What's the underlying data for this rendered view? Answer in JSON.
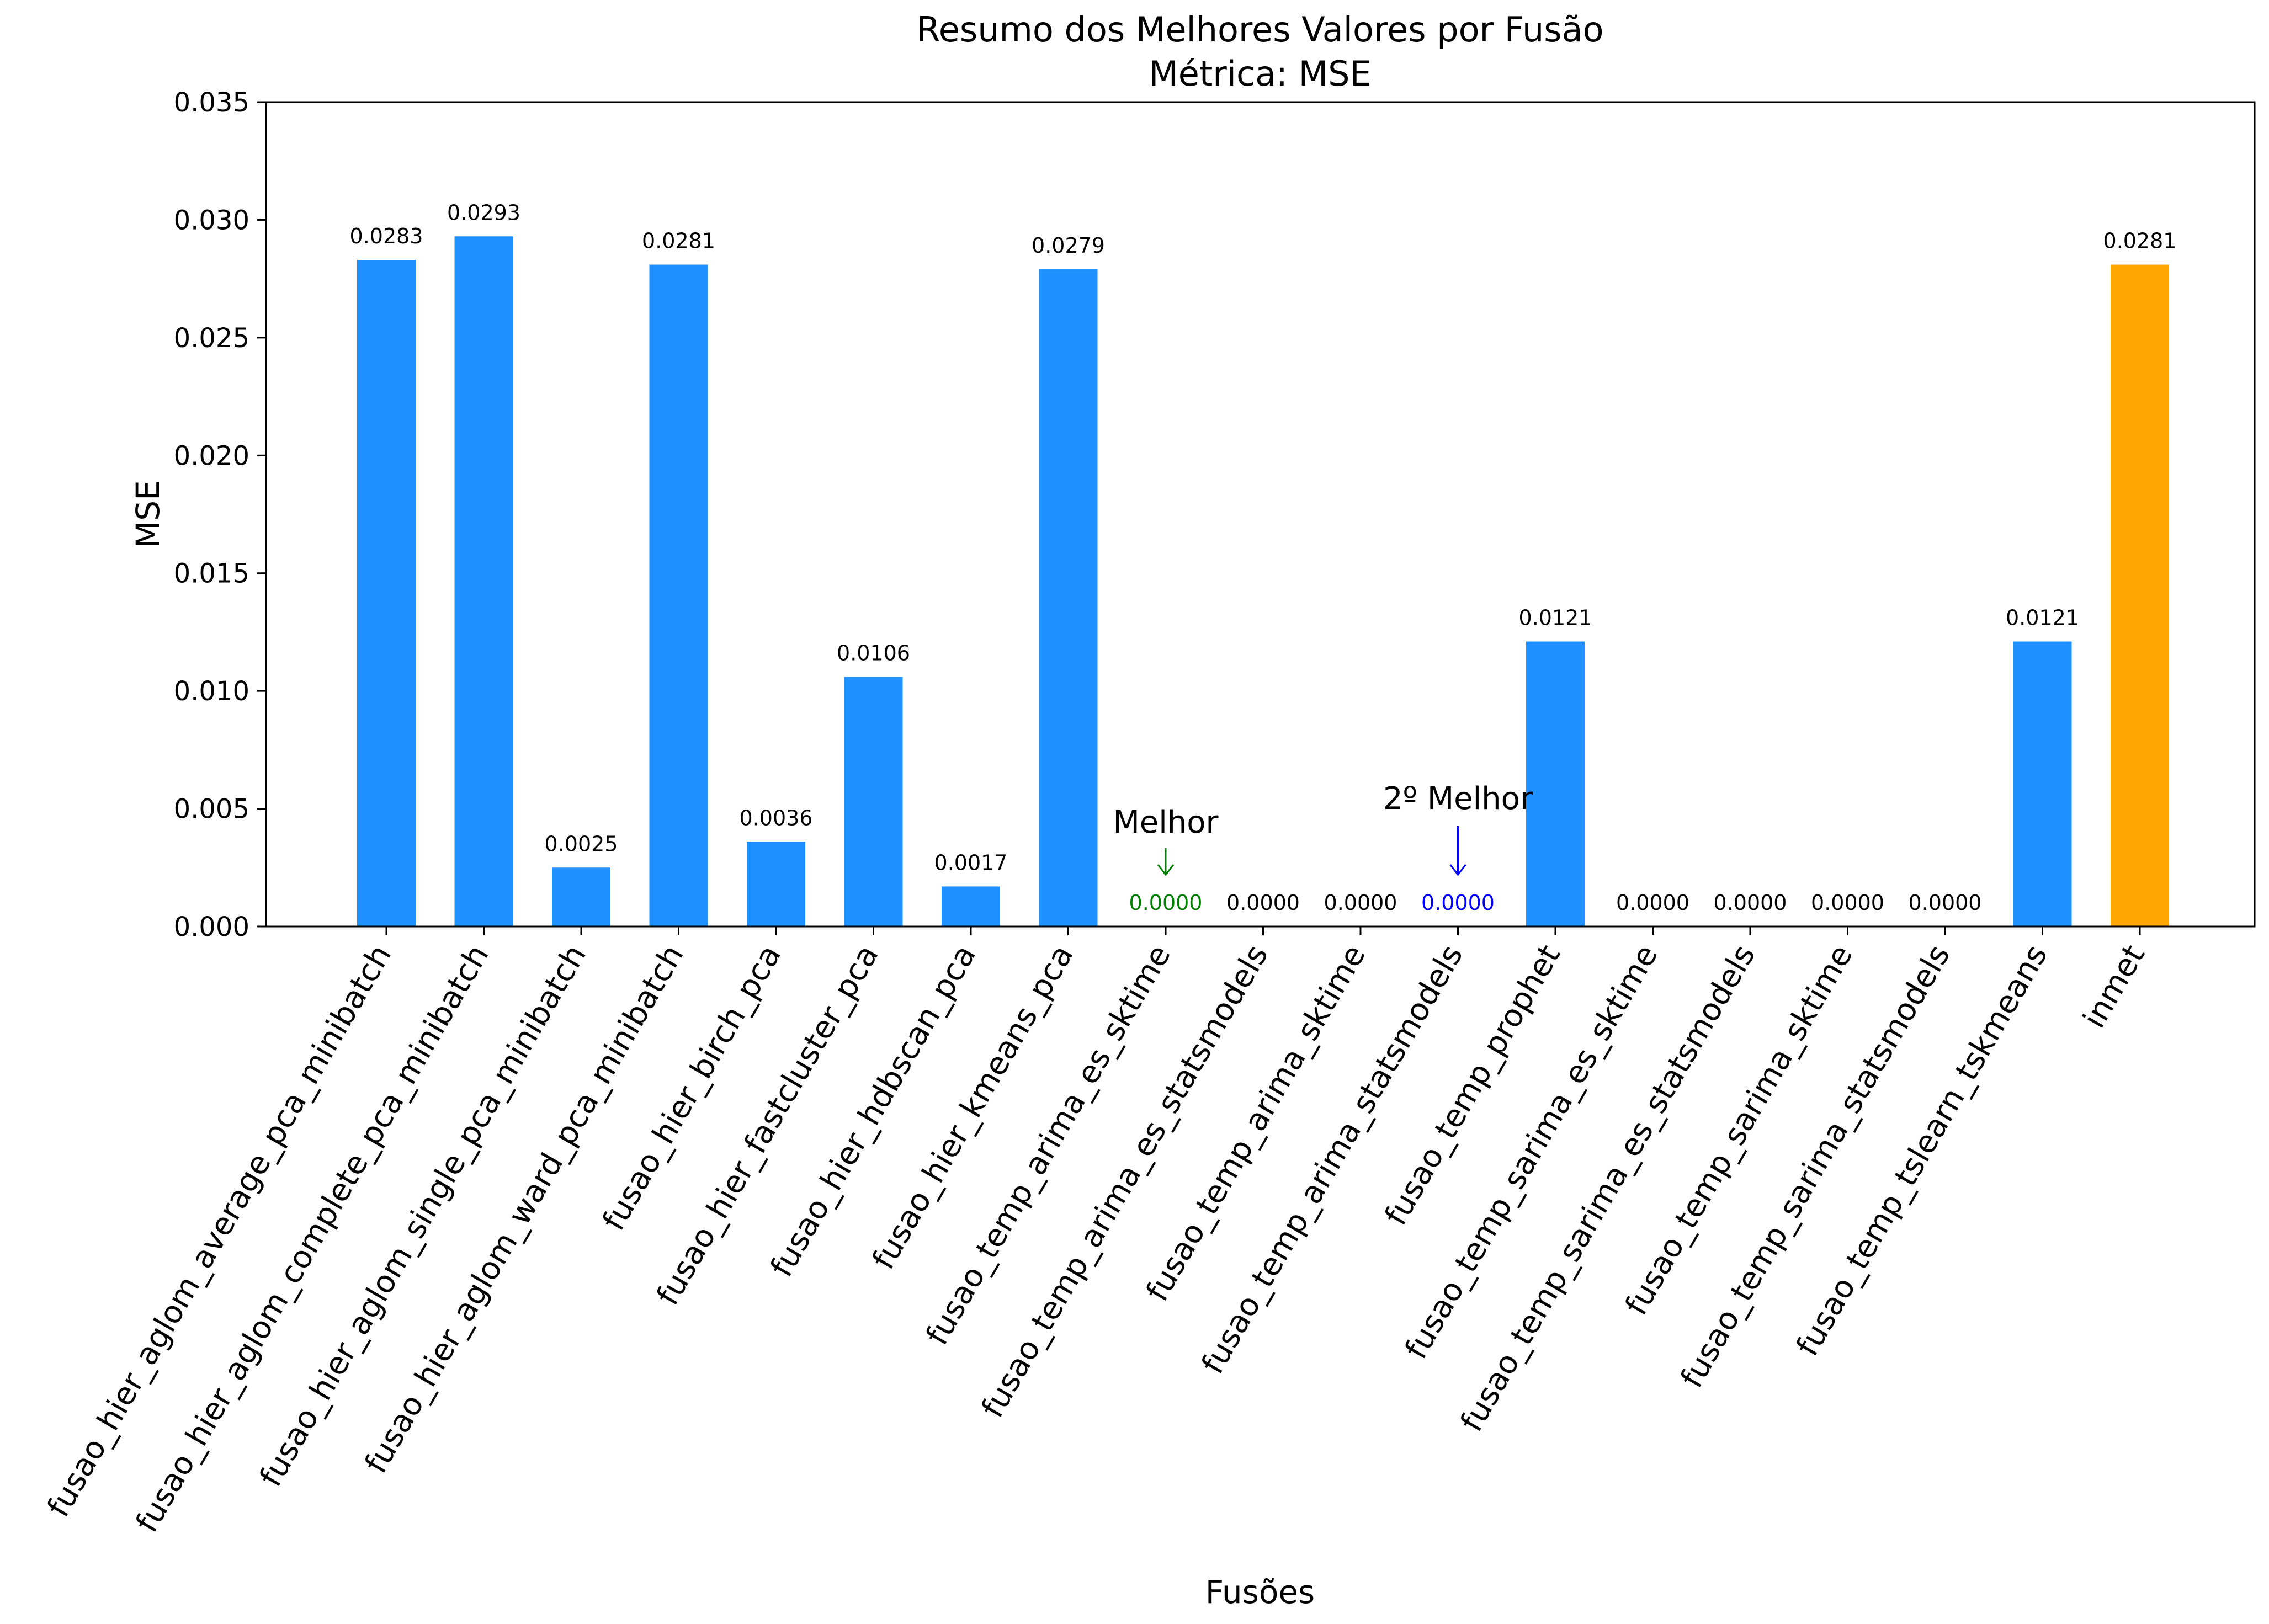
{
  "chart_data": {
    "type": "bar",
    "title": "Resumo dos Melhores Valores por Fusão",
    "subtitle": "Métrica: MSE",
    "xlabel": "Fusões",
    "ylabel": "MSE",
    "ylim": [
      0,
      0.035
    ],
    "yticks": [
      "0.000",
      "0.005",
      "0.010",
      "0.015",
      "0.020",
      "0.025",
      "0.030",
      "0.035"
    ],
    "grid": false,
    "legend": "none",
    "categories": [
      "fusao_hier_aglom_average_pca_minibatch",
      "fusao_hier_aglom_complete_pca_minibatch",
      "fusao_hier_aglom_single_pca_minibatch",
      "fusao_hier_aglom_ward_pca_minibatch",
      "fusao_hier_birch_pca",
      "fusao_hier_fastcluster_pca",
      "fusao_hier_hdbscan_pca",
      "fusao_hier_kmeans_pca",
      "fusao_temp_arima_es_sktime",
      "fusao_temp_arima_es_statsmodels",
      "fusao_temp_arima_sktime",
      "fusao_temp_arima_statsmodels",
      "fusao_temp_prophet",
      "fusao_temp_sarima_es_sktime",
      "fusao_temp_sarima_es_statsmodels",
      "fusao_temp_sarima_sktime",
      "fusao_temp_sarima_statsmodels",
      "fusao_temp_tslearn_tskmeans",
      "inmet"
    ],
    "values": [
      0.0283,
      0.0293,
      0.0025,
      0.0281,
      0.0036,
      0.0106,
      0.0017,
      0.0279,
      0.0,
      0.0,
      0.0,
      0.0,
      0.0121,
      0.0,
      0.0,
      0.0,
      0.0,
      0.0121,
      0.0281
    ],
    "value_labels": [
      "0.0283",
      "0.0293",
      "0.0025",
      "0.0281",
      "0.0036",
      "0.0106",
      "0.0017",
      "0.0279",
      "0.0000",
      "0.0000",
      "0.0000",
      "0.0000",
      "0.0121",
      "0.0000",
      "0.0000",
      "0.0000",
      "0.0000",
      "0.0121",
      "0.0281"
    ],
    "bar_colors": [
      "#1e90ff",
      "#1e90ff",
      "#1e90ff",
      "#1e90ff",
      "#1e90ff",
      "#1e90ff",
      "#1e90ff",
      "#1e90ff",
      "#1e90ff",
      "#1e90ff",
      "#1e90ff",
      "#1e90ff",
      "#1e90ff",
      "#1e90ff",
      "#1e90ff",
      "#1e90ff",
      "#1e90ff",
      "#1e90ff",
      "#ffa500"
    ],
    "label_colors": [
      "#000000",
      "#000000",
      "#000000",
      "#000000",
      "#000000",
      "#000000",
      "#000000",
      "#000000",
      "#008000",
      "#000000",
      "#000000",
      "#0000ff",
      "#000000",
      "#000000",
      "#000000",
      "#000000",
      "#000000",
      "#000000",
      "#000000"
    ],
    "annotations": [
      {
        "text": "Melhor",
        "category_index": 8,
        "color": "#008000"
      },
      {
        "text": "2º Melhor",
        "category_index": 11,
        "color": "#0000ff"
      }
    ]
  }
}
